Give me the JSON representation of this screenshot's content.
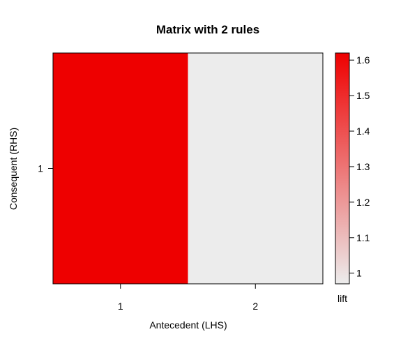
{
  "chart_data": {
    "type": "heatmap",
    "title": "Matrix with 2 rules",
    "xlabel": "Antecedent (LHS)",
    "ylabel": "Consequent (RHS)",
    "x_categories": [
      "1",
      "2"
    ],
    "y_categories": [
      "1"
    ],
    "values": [
      [
        1.62,
        0.97
      ]
    ],
    "value_name": "lift",
    "colorbar": {
      "label": "lift",
      "ticks": [
        "1",
        "1.1",
        "1.2",
        "1.3",
        "1.4",
        "1.5",
        "1.6"
      ],
      "tick_values": [
        1.0,
        1.1,
        1.2,
        1.3,
        1.4,
        1.5,
        1.6
      ],
      "range": [
        0.97,
        1.62
      ],
      "low_color": "#ececec",
      "high_color": "#ee0000"
    },
    "grid": false
  }
}
